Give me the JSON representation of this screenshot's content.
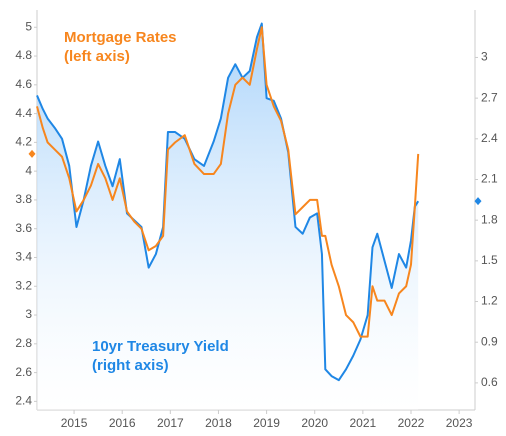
{
  "chart_data": {
    "type": "line",
    "annotations": [
      {
        "lines": [
          "Mortgage Rates",
          "(left axis)"
        ],
        "color": "#f7861e"
      },
      {
        "lines": [
          "10yr Treasury Yield",
          "(right axis)"
        ],
        "color": "#1f87e5"
      }
    ],
    "x": [
      2014.23,
      2014.35,
      2014.45,
      2014.6,
      2014.75,
      2014.9,
      2015.05,
      2015.2,
      2015.35,
      2015.5,
      2015.65,
      2015.8,
      2015.95,
      2016.1,
      2016.25,
      2016.4,
      2016.55,
      2016.7,
      2016.85,
      2016.95,
      2017.1,
      2017.3,
      2017.5,
      2017.7,
      2017.9,
      2018.05,
      2018.2,
      2018.35,
      2018.5,
      2018.65,
      2018.8,
      2018.9,
      2019.0,
      2019.15,
      2019.3,
      2019.45,
      2019.6,
      2019.75,
      2019.9,
      2020.05,
      2020.15,
      2020.22,
      2020.35,
      2020.5,
      2020.65,
      2020.8,
      2020.95,
      2021.1,
      2021.2,
      2021.3,
      2021.45,
      2021.6,
      2021.75,
      2021.9,
      2022.0,
      2022.08,
      2022.15
    ],
    "series": [
      {
        "name": "10yr Treasury Yield",
        "color": "#1f87e5",
        "axis": "y2",
        "area": true,
        "values": [
          2.72,
          2.62,
          2.55,
          2.48,
          2.4,
          2.2,
          1.75,
          1.95,
          2.2,
          2.38,
          2.2,
          2.05,
          2.25,
          1.85,
          1.8,
          1.75,
          1.45,
          1.55,
          1.75,
          2.45,
          2.45,
          2.4,
          2.25,
          2.2,
          2.38,
          2.55,
          2.85,
          2.95,
          2.85,
          2.9,
          3.15,
          3.25,
          2.7,
          2.68,
          2.55,
          2.3,
          1.75,
          1.7,
          1.82,
          1.85,
          1.55,
          0.7,
          0.65,
          0.62,
          0.7,
          0.8,
          0.92,
          1.1,
          1.6,
          1.7,
          1.5,
          1.3,
          1.55,
          1.45,
          1.65,
          1.9,
          1.94
        ]
      },
      {
        "name": "Mortgage Rates",
        "color": "#f7861e",
        "axis": "y",
        "values": [
          4.45,
          4.3,
          4.2,
          4.15,
          4.1,
          3.95,
          3.72,
          3.8,
          3.9,
          4.05,
          3.95,
          3.8,
          3.95,
          3.72,
          3.65,
          3.6,
          3.45,
          3.48,
          3.55,
          4.15,
          4.2,
          4.25,
          4.05,
          3.98,
          3.98,
          4.05,
          4.4,
          4.6,
          4.65,
          4.6,
          4.85,
          5.0,
          4.6,
          4.45,
          4.35,
          4.15,
          3.7,
          3.75,
          3.8,
          3.8,
          3.55,
          3.55,
          3.35,
          3.2,
          3.0,
          2.95,
          2.85,
          2.85,
          3.2,
          3.1,
          3.1,
          3.0,
          3.15,
          3.2,
          3.35,
          3.75,
          4.12
        ]
      }
    ],
    "xlim": [
      2014.23,
      2023.33
    ],
    "xticks": [
      2015,
      2016,
      2017,
      2018,
      2019,
      2020,
      2021,
      2022,
      2023
    ],
    "ylim": [
      2.34,
      5.12
    ],
    "yticks": [
      2.4,
      2.6,
      2.8,
      3,
      3.2,
      3.4,
      3.6,
      3.8,
      4,
      4.2,
      4.4,
      4.6,
      4.8,
      5
    ],
    "y2lim": [
      0.4,
      3.35
    ],
    "y2ticks": [
      0.6,
      0.9,
      1.2,
      1.5,
      1.8,
      2.1,
      2.4,
      2.7,
      3
    ],
    "grid": false,
    "last_value_markers": true
  }
}
